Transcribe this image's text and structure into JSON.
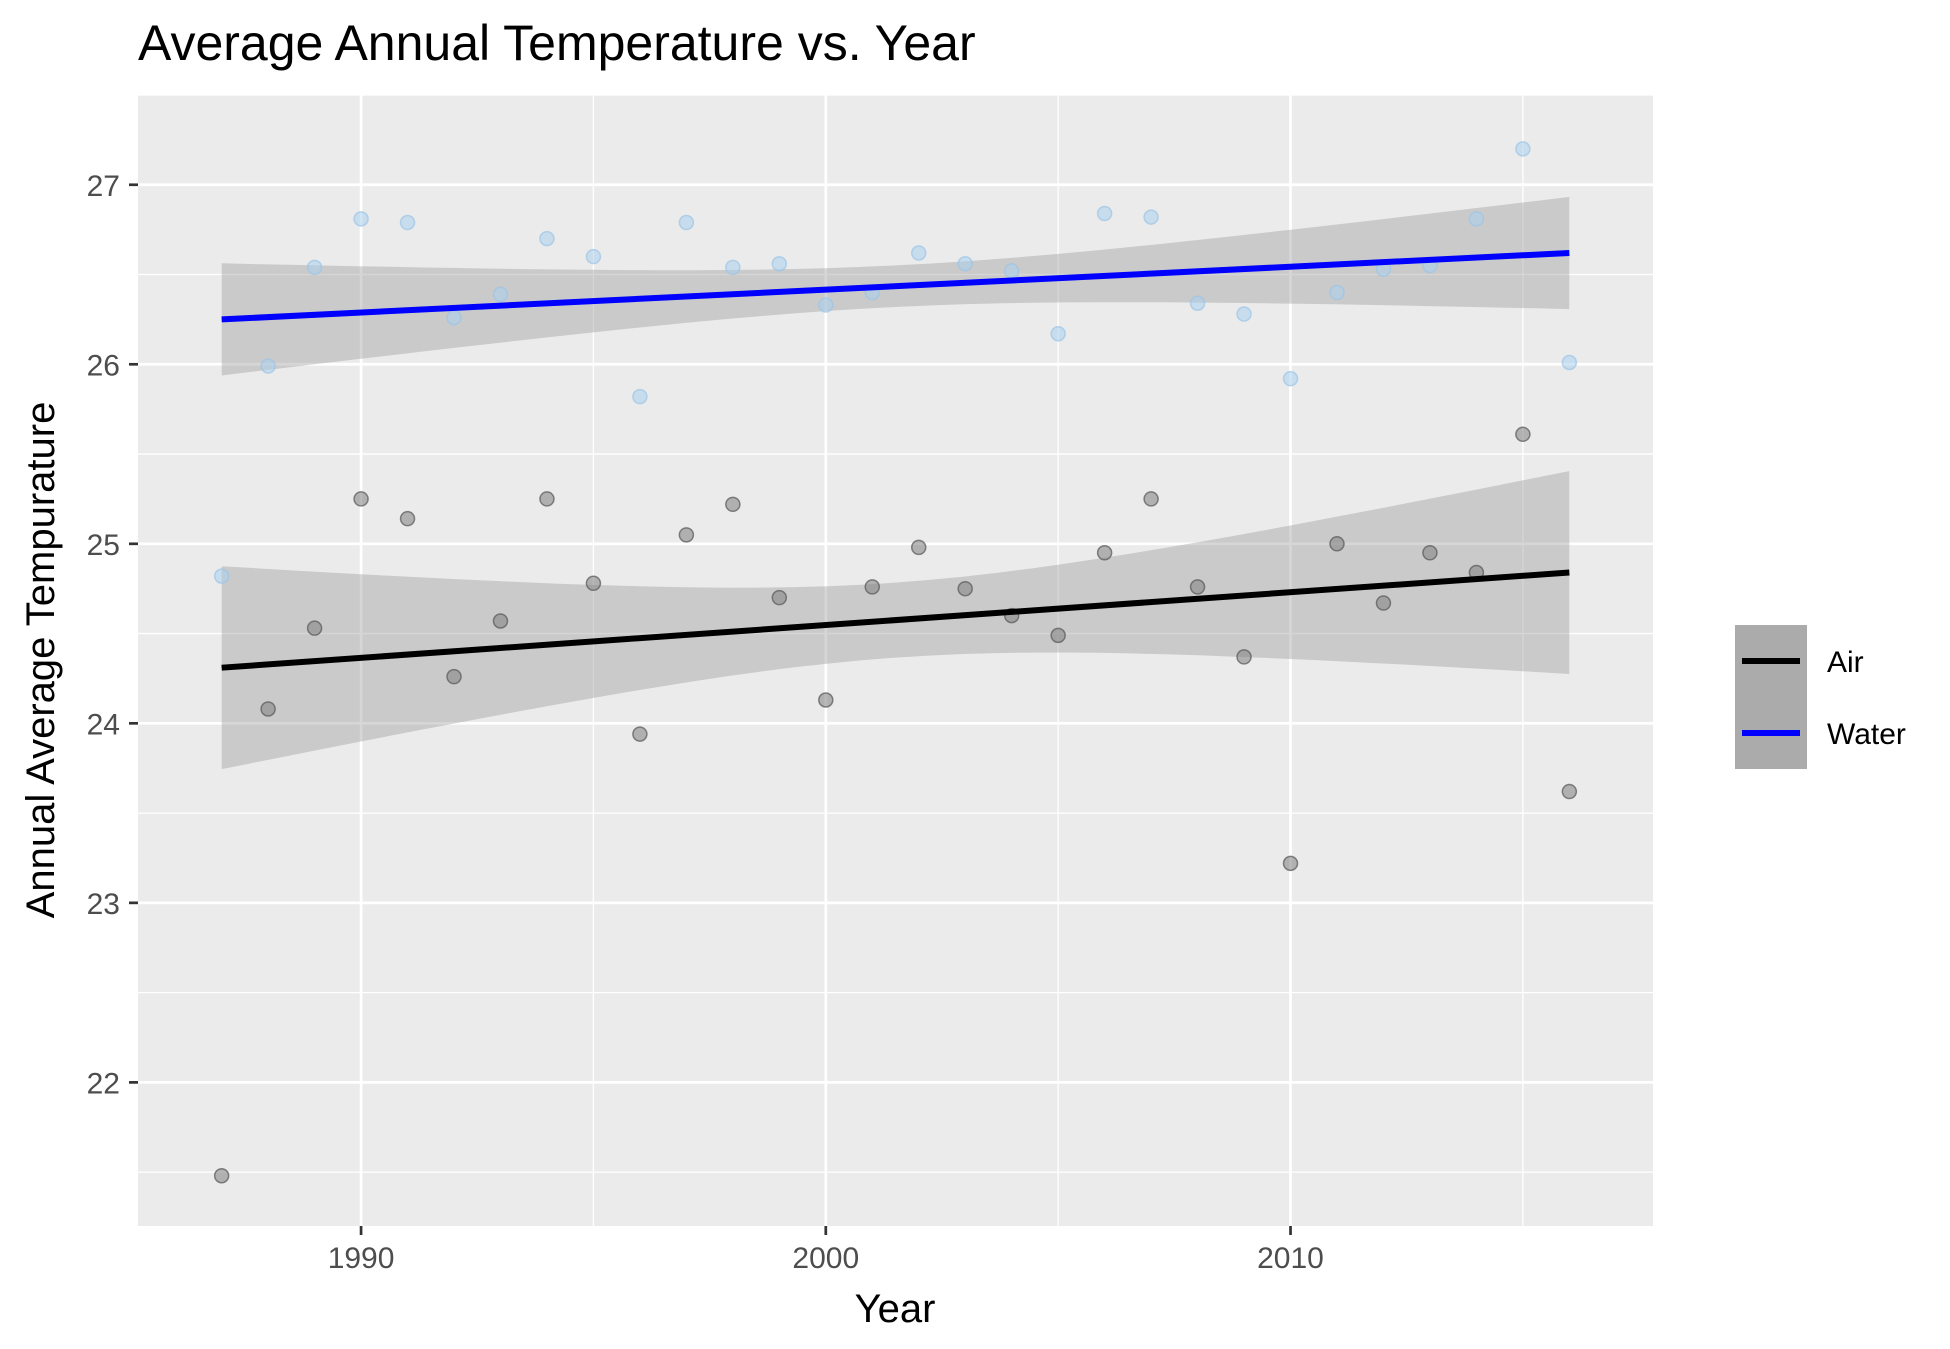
{
  "chart_data": {
    "type": "scatter",
    "title": "Average Annual Temperature vs. Year",
    "xlabel": "Year",
    "ylabel": "Annual Average Tempurature",
    "xlim": [
      1985.2,
      2017.8
    ],
    "ylim": [
      21.2,
      27.5
    ],
    "x_ticks": [
      1990,
      2000,
      2010
    ],
    "x_tick_labels": [
      "1990",
      "2000",
      "2010"
    ],
    "y_ticks": [
      22,
      23,
      24,
      25,
      26,
      27
    ],
    "y_tick_labels": [
      "22",
      "23",
      "24",
      "25",
      "26",
      "27"
    ],
    "grid": true,
    "legend_position": "right",
    "series": [
      {
        "name": "Air",
        "color": "#000000",
        "point_color": "#808080",
        "x": [
          1987,
          1988,
          1989,
          1990,
          1991,
          1992,
          1993,
          1994,
          1995,
          1996,
          1997,
          1998,
          1999,
          2000,
          2001,
          2002,
          2003,
          2004,
          2005,
          2006,
          2007,
          2008,
          2009,
          2010,
          2011,
          2012,
          2013,
          2014,
          2015,
          2016
        ],
        "values": [
          21.48,
          24.08,
          24.53,
          25.25,
          25.14,
          24.26,
          24.57,
          25.25,
          24.78,
          23.94,
          25.05,
          25.22,
          24.7,
          24.13,
          24.76,
          24.98,
          24.75,
          24.6,
          24.49,
          24.95,
          25.25,
          24.76,
          24.37,
          23.22,
          25.0,
          24.67,
          24.95,
          24.84,
          25.61,
          23.62
        ],
        "fit": {
          "x": [
            1987,
            2016
          ],
          "y": [
            24.31,
            24.84
          ],
          "band_lower_start": 23.74,
          "band_lower_end": 24.27,
          "band_upper_start": 24.87,
          "band_upper_end": 25.4
        }
      },
      {
        "name": "Water",
        "color": "#0000ff",
        "point_color": "#a9d0ef",
        "x": [
          1987,
          1988,
          1989,
          1990,
          1991,
          1992,
          1993,
          1994,
          1995,
          1996,
          1997,
          1998,
          1999,
          2000,
          2001,
          2002,
          2003,
          2004,
          2005,
          2006,
          2007,
          2008,
          2009,
          2010,
          2011,
          2012,
          2013,
          2014,
          2015,
          2016
        ],
        "values": [
          24.82,
          25.99,
          26.54,
          26.81,
          26.79,
          26.26,
          26.39,
          26.7,
          26.6,
          25.82,
          26.79,
          26.54,
          26.56,
          26.33,
          26.4,
          26.62,
          26.56,
          26.52,
          26.17,
          26.84,
          26.82,
          26.34,
          26.28,
          25.92,
          26.4,
          26.53,
          26.55,
          26.81,
          27.2,
          26.01
        ],
        "fit": {
          "x": [
            1987,
            2016
          ],
          "y": [
            26.25,
            26.62
          ],
          "band_lower_start": 25.94,
          "band_lower_end": 26.3,
          "band_upper_start": 26.56,
          "band_upper_end": 26.93
        }
      }
    ]
  }
}
